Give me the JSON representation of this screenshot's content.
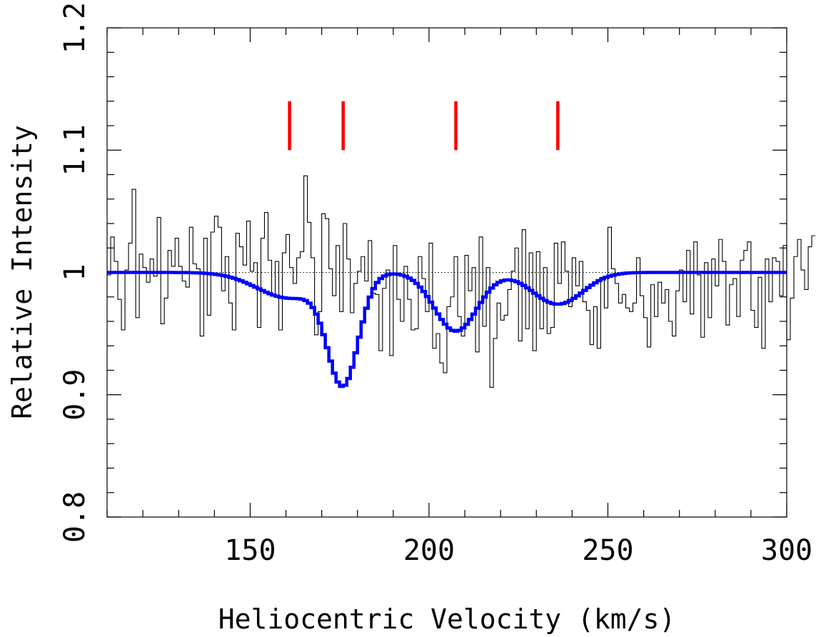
{
  "chart_data": {
    "type": "line",
    "title": "",
    "xlabel": "Heliocentric Velocity (km/s)",
    "ylabel": "Relative Intensity",
    "xlim": [
      110,
      300
    ],
    "ylim": [
      0.8,
      1.2
    ],
    "x_ticks": [
      150,
      200,
      250,
      300
    ],
    "x_tick_labels": [
      "150",
      "200",
      "250",
      "300"
    ],
    "y_ticks": [
      0.8,
      0.9,
      1.0,
      1.1,
      1.2
    ],
    "y_tick_labels": [
      "0.8",
      "0.9",
      "1",
      "1.1",
      "1.2"
    ],
    "reference_level": 1.0,
    "component_markers": {
      "color": "#ff0000",
      "x": [
        161,
        176,
        207.5,
        236
      ],
      "y_range": [
        1.1,
        1.14
      ]
    },
    "series": [
      {
        "kind": "observed-spectrum-histogram",
        "color": "#000000",
        "x_start": 110,
        "bin_width": 1.0,
        "values": [
          0.998,
          1.029,
          1.009,
          0.978,
          0.953,
          1.002,
          1.024,
          1.068,
          0.963,
          1.015,
          1.004,
          0.992,
          1.011,
          0.997,
          1.045,
          0.958,
          0.979,
          1.018,
          1.005,
          1.028,
          1.005,
          0.993,
          0.988,
          1.037,
          1.007,
          1.003,
          0.948,
          1.028,
          0.965,
          1.033,
          1.046,
          1.037,
          0.985,
          1.013,
          0.975,
          0.953,
          1.032,
          1.021,
          1.006,
          1.042,
          1.001,
          1.008,
          0.955,
          1.028,
          1.049,
          1.01,
          0.982,
          1.009,
          0.953,
          1.016,
          1.031,
          1.004,
          0.991,
          1.012,
          1.017,
          1.079,
          1.041,
          1.012,
          0.949,
          0.968,
          1.048,
          1.044,
          1.003,
          0.981,
          1.022,
          0.968,
          1.04,
          1.011,
          0.967,
          0.991,
          1.001,
          1.013,
          0.993,
          1.026,
          0.983,
          0.982,
          0.936,
          0.987,
          1.002,
          0.932,
          1.022,
          0.978,
          0.96,
          1.005,
          0.978,
          0.953,
          0.954,
          1.013,
          0.995,
          0.968,
          1.024,
          0.938,
          0.95,
          0.926,
          0.918,
          0.972,
          0.98,
          1.013,
          0.964,
          0.948,
          1.014,
          0.985,
          1.004,
          0.935,
          1.029,
          0.956,
          1.004,
          0.906,
          0.946,
          0.975,
          0.961,
          0.965,
          0.986,
          1.001,
          1.02,
          0.944,
          1.035,
          0.954,
          1.016,
          0.936,
          1.017,
          0.954,
          1.004,
          0.95,
          0.955,
          1.024,
          0.991,
          1.025,
          1.001,
          0.972,
          1.012,
          0.989,
          1.009,
          0.976,
          0.969,
          0.941,
          0.972,
          0.938,
          0.996,
          0.971,
          1.037,
          1.003,
          0.991,
          0.975,
          0.982,
          0.971,
          0.968,
          0.975,
          1.012,
          0.981,
          0.963,
          0.939,
          0.99,
          0.964,
          0.992,
          0.975,
          0.986,
          0.96,
          0.948,
          0.985,
          1.002,
          0.976,
          1.018,
          0.966,
          1.025,
          0.998,
          0.947,
          1.008,
          0.963,
          1.011,
          0.989,
          1.027,
          1.009,
          0.957,
          0.99,
          0.995,
          0.964,
          1.01,
          1.018,
          1.025,
          0.969,
          0.955,
          0.996,
          0.938,
          1.011,
          0.976,
          1.012,
          1.009,
          0.981,
          1.022,
          0.945,
          0.979,
          1.013,
          1.027,
          1.002,
          0.986,
          1.021,
          1.03
        ]
      },
      {
        "kind": "model-fit",
        "color": "#0000ff",
        "baseline": 1.0,
        "components": [
          {
            "center": 161,
            "depth": 0.021,
            "sigma": 9
          },
          {
            "center": 176,
            "depth": 0.088,
            "sigma": 4.3
          },
          {
            "center": 207.5,
            "depth": 0.048,
            "sigma": 6
          },
          {
            "center": 236,
            "depth": 0.026,
            "sigma": 7
          }
        ]
      }
    ]
  }
}
